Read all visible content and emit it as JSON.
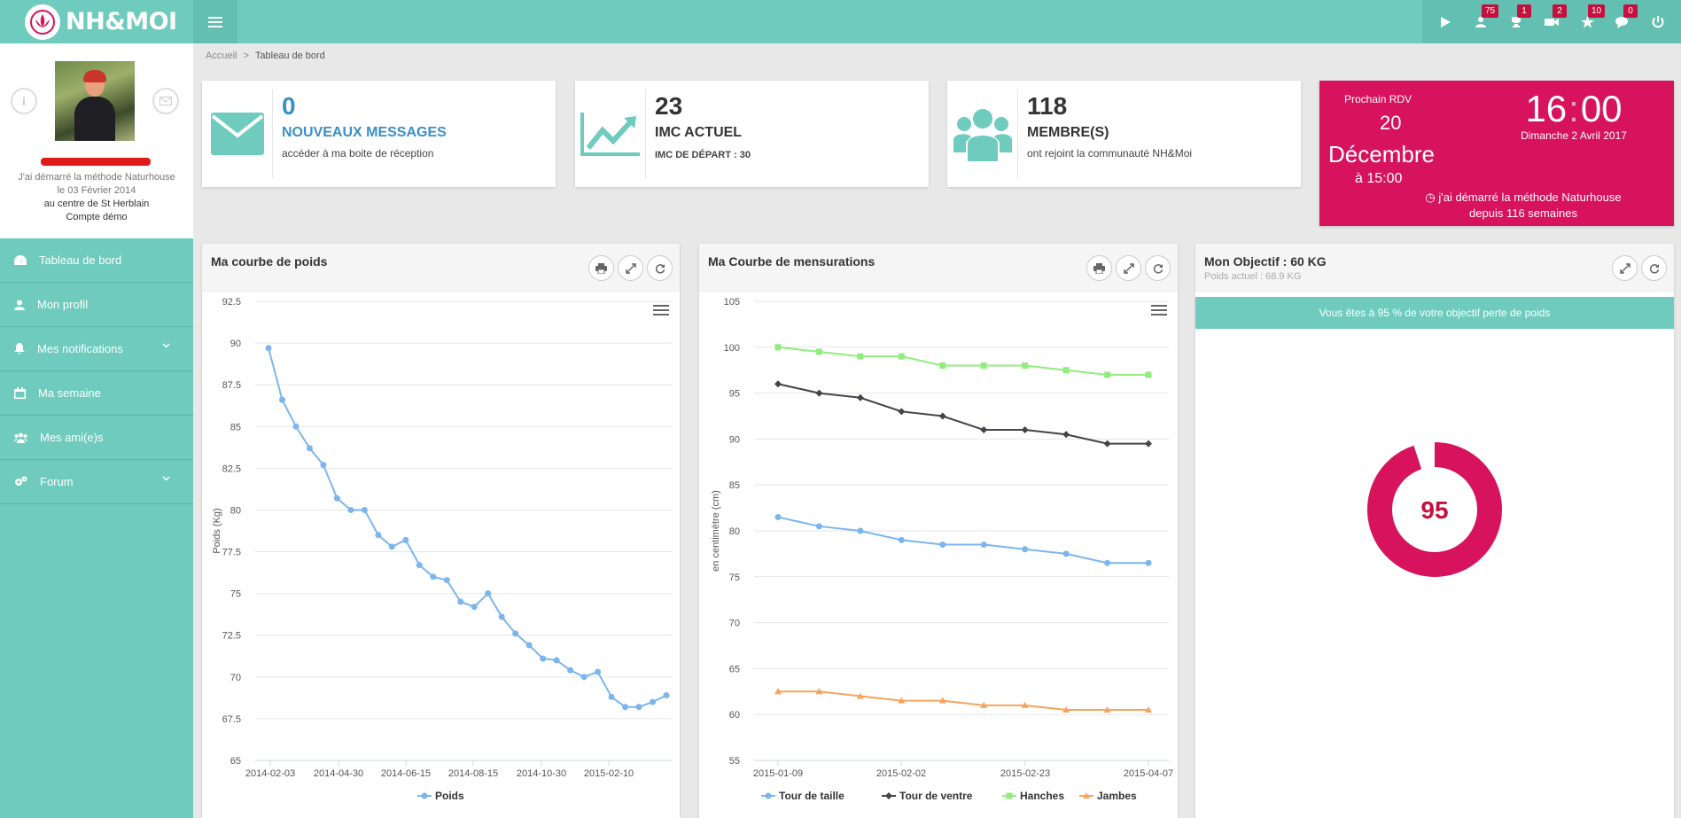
{
  "app": {
    "brand": "NH&MOI"
  },
  "topbar": {
    "badges": [
      {
        "icon": "users-icon",
        "count": "75"
      },
      {
        "icon": "trophy-icon",
        "count": "1"
      },
      {
        "icon": "video-icon",
        "count": "2"
      },
      {
        "icon": "star-icon",
        "count": "10"
      },
      {
        "icon": "comments-icon",
        "count": "0"
      }
    ]
  },
  "profile": {
    "line1": "J'ai démarré la méthode Naturhouse",
    "line2": "le 03 Février 2014",
    "line3": "au centre de St Herblain",
    "line4": "Compte démo"
  },
  "sidebar": {
    "items": [
      {
        "label": "Tableau de bord",
        "icon": "dashboard-icon"
      },
      {
        "label": "Mon profil",
        "icon": "user-icon"
      },
      {
        "label": "Mes notifications",
        "icon": "bell-icon"
      },
      {
        "label": "Ma semaine",
        "icon": "calendar-icon"
      },
      {
        "label": "Mes ami(e)s",
        "icon": "friends-icon"
      },
      {
        "label": "Forum",
        "icon": "cogs-icon"
      }
    ]
  },
  "breadcrumb": {
    "home": "Accueil",
    "sep": ">",
    "current": "Tableau de bord"
  },
  "stats": {
    "messages": {
      "num": "0",
      "label": "NOUVEAUX MESSAGES",
      "sub": "accéder à ma boite de réception"
    },
    "imc": {
      "num": "23",
      "label": "IMC ACTUEL",
      "sub": "IMC DE DÉPART : 30"
    },
    "members": {
      "num": "118",
      "label": "MEMBRE(S)",
      "sub": "ont rejoint la communauté NH&Moi"
    }
  },
  "rdv": {
    "title": "Prochain RDV",
    "day": "20",
    "month": "Décembre",
    "time": "à 15:00",
    "clock_h": "16",
    "clock_sep": ":",
    "clock_m": "00",
    "date": "Dimanche 2 Avril 2017",
    "note1": "j'ai démarré la méthode Naturhouse",
    "note2": "depuis 116 semaines"
  },
  "panels": {
    "weight": {
      "title": "Ma courbe de poids"
    },
    "measures": {
      "title": "Ma Courbe de mensurations"
    },
    "goal": {
      "title": "Mon Objectif : 60 KG",
      "sub": "Poids actuel : 68.9 KG",
      "banner": "Vous êtes à 95 % de votre objectif perte de poids",
      "value": "95",
      "percent": 95
    }
  },
  "chart_data": [
    {
      "type": "line",
      "title": "",
      "ylabel": "Poids (Kg)",
      "ylim": [
        65,
        92.5
      ],
      "yticks": [
        "92.5",
        "90",
        "87.5",
        "85",
        "82.5",
        "80",
        "77.5",
        "75",
        "72.5",
        "70",
        "67.5",
        "65"
      ],
      "xticks": [
        "2014-02-03",
        "2014-04-30",
        "2014-06-15",
        "2014-08-15",
        "2014-10-30",
        "2015-02-10"
      ],
      "grid": true,
      "legend": "bottom",
      "color": "#7cb5ec",
      "series": [
        {
          "name": "Poids",
          "values": [
            89.7,
            86.6,
            85.0,
            83.7,
            82.7,
            80.7,
            80.0,
            80.0,
            78.5,
            77.8,
            78.2,
            76.7,
            76.0,
            75.8,
            74.5,
            74.2,
            75.0,
            73.6,
            72.6,
            71.9,
            71.1,
            71.0,
            70.4,
            70.0,
            70.3,
            68.8,
            68.2,
            68.2,
            68.5,
            68.9
          ]
        }
      ]
    },
    {
      "type": "line",
      "title": "",
      "ylabel": "en centimètre (cm)",
      "ylim": [
        55,
        105
      ],
      "yticks": [
        "105",
        "100",
        "95",
        "90",
        "85",
        "80",
        "75",
        "70",
        "65",
        "60",
        "55"
      ],
      "xticks": [
        "2015-01-09",
        "2015-02-02",
        "2015-02-23",
        "2015-04-07"
      ],
      "grid": true,
      "legend": "bottom",
      "series": [
        {
          "name": "Tour de taille",
          "color": "#7cb5ec",
          "marker": "circle",
          "values": [
            81.5,
            80.5,
            80.0,
            79.0,
            78.5,
            78.5,
            78.0,
            77.5,
            76.5,
            76.5
          ]
        },
        {
          "name": "Tour de ventre",
          "color": "#434348",
          "marker": "diamond",
          "values": [
            96.0,
            95.0,
            94.5,
            93.0,
            92.5,
            91.0,
            91.0,
            90.5,
            89.5,
            89.5
          ]
        },
        {
          "name": "Hanches",
          "color": "#90ed7d",
          "marker": "square",
          "values": [
            100.0,
            99.5,
            99.0,
            99.0,
            98.0,
            98.0,
            98.0,
            97.5,
            97.0,
            97.0
          ]
        },
        {
          "name": "Jambes",
          "color": "#f7a35c",
          "marker": "triangle",
          "values": [
            62.5,
            62.5,
            62.0,
            61.5,
            61.5,
            61.0,
            61.0,
            60.5,
            60.5,
            60.5
          ]
        }
      ]
    }
  ]
}
